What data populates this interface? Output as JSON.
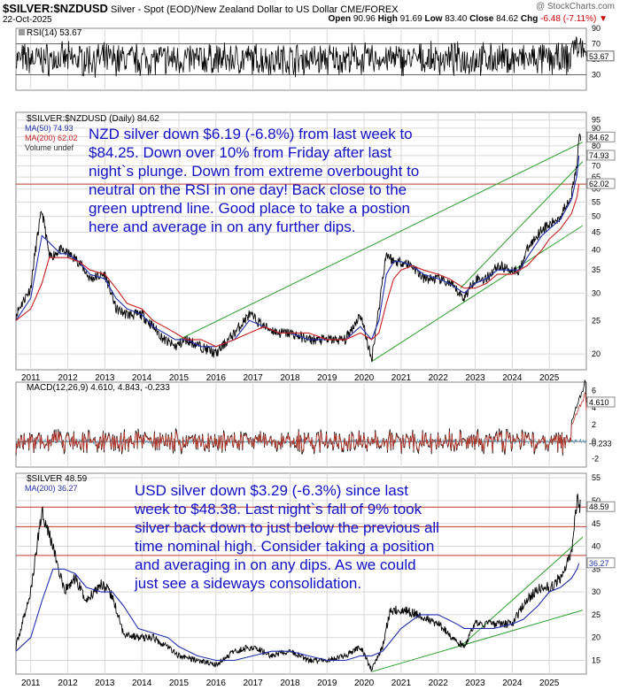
{
  "header": {
    "symbol": "$SILVER:$NZDUSD",
    "description": "Silver - Spot (EOD)/New Zealand Dollar to US Dollar CME/FOREX",
    "date": "22-Oct-2025",
    "watermark": "@ StockCharts.com",
    "ohlc": {
      "open_label": "Open",
      "open": "90.96",
      "high_label": "High",
      "high": "91.69",
      "low_label": "Low",
      "low": "83.40",
      "close_label": "Close",
      "close": "84.62",
      "chg_label": "Chg",
      "chg": "-6.48 (-7.11%)"
    }
  },
  "annotations": {
    "nzd_lines": [
      "NZD silver down $6.19 (-6.8%) from last week to",
      "$84.25. Down over 10% from Friday after last",
      "night`s plunge. Down from extreme overbought to",
      "neutral on the RSI in one day! Back close to the",
      "green uptrend line. Good place to take a postion",
      "here and average in on any further dips."
    ],
    "usd_lines": [
      "USD silver down $3.29 (-6.3%) since last",
      "week to $48.38. Last night`s fall of 9% took",
      "silver back down to just below the previous all",
      "time nominal high. Consider taking a position",
      "and averaging in on any dips. As we could",
      "just see a sideways consolidation."
    ]
  },
  "colors": {
    "price": "#000000",
    "ma50": "#1f2fb0",
    "ma200": "#cc1f1f",
    "trend": "#2aa12a",
    "grid": "#d8d8d8",
    "annotation": "#1010c8",
    "macd_hist": "#4f8fb0"
  },
  "chart_data": [
    {
      "type": "line",
      "panel": "rsi",
      "title": "RSI(14) 53.67",
      "ylim": [
        10,
        90
      ],
      "yticks": [
        30,
        50,
        70,
        90
      ],
      "levels": [
        30,
        70
      ],
      "last_label": "53.67",
      "series": [
        {
          "name": "RSI(14)",
          "last": 53.67
        }
      ]
    },
    {
      "type": "line",
      "panel": "nzd_price",
      "legend": [
        "$SILVER:$NZDUSD (Daily) 84.62",
        "MA(50) 74.93",
        "MA(200) 62.02",
        "Volume undef"
      ],
      "scale": "log",
      "ylim": [
        18,
        100
      ],
      "yticks": [
        20,
        25,
        30,
        35,
        40,
        45,
        50,
        55,
        60,
        65,
        70,
        75,
        80,
        85,
        90,
        95
      ],
      "x": [
        2010.6,
        2011.0,
        2011.3,
        2011.5,
        2011.8,
        2012.0,
        2012.3,
        2012.6,
        2013.0,
        2013.3,
        2013.6,
        2014.0,
        2014.3,
        2014.6,
        2014.9,
        2015.2,
        2015.6,
        2016.0,
        2016.5,
        2016.9,
        2017.3,
        2017.7,
        2018.0,
        2018.5,
        2019.0,
        2019.5,
        2019.9,
        2020.2,
        2020.4,
        2020.6,
        2020.8,
        2021.0,
        2021.3,
        2021.6,
        2022.0,
        2022.3,
        2022.7,
        2023.0,
        2023.3,
        2023.6,
        2024.0,
        2024.2,
        2024.4,
        2024.8,
        2025.0,
        2025.3,
        2025.6,
        2025.75,
        2025.8
      ],
      "series": [
        {
          "name": "$SILVER:$NZDUSD",
          "values": [
            26,
            31,
            52,
            38,
            40,
            39,
            37,
            33,
            34,
            27,
            26,
            26,
            24,
            22,
            21,
            22,
            21,
            20,
            23,
            26,
            24,
            23,
            23,
            22,
            22,
            22,
            26,
            19,
            27,
            39,
            37,
            37,
            36,
            33,
            33,
            32,
            29,
            33,
            33,
            36,
            35,
            35,
            40,
            46,
            47,
            50,
            58,
            70,
            84.62
          ]
        },
        {
          "name": "MA(50)",
          "values": [
            25,
            29,
            44,
            42,
            39,
            39,
            37,
            34,
            33,
            29,
            27,
            26,
            24,
            23,
            22,
            22,
            21,
            21,
            22,
            25,
            24,
            23,
            23,
            22,
            22,
            22,
            24,
            22,
            25,
            34,
            37,
            37,
            36,
            34,
            33,
            32,
            30,
            32,
            33,
            35,
            35,
            35,
            38,
            44,
            46,
            49,
            56,
            66,
            74.93
          ]
        },
        {
          "name": "MA(200)",
          "values": [
            25,
            27,
            32,
            38,
            38,
            38,
            37,
            35,
            34,
            31,
            28,
            27,
            25,
            24,
            23,
            22,
            22,
            21,
            22,
            23,
            24,
            23,
            23,
            23,
            22,
            22,
            23,
            22,
            23,
            28,
            33,
            35,
            36,
            35,
            34,
            33,
            31,
            31,
            32,
            34,
            34,
            35,
            36,
            40,
            43,
            46,
            51,
            57,
            62.02
          ]
        }
      ],
      "trendlines": [
        {
          "x": [
            2015.0,
            2025.9
          ],
          "y": [
            22,
            82
          ]
        },
        {
          "x": [
            2020.2,
            2025.9
          ],
          "y": [
            19,
            47
          ]
        },
        {
          "x": [
            2022.6,
            2025.9
          ],
          "y": [
            31,
            72
          ]
        }
      ],
      "hline": 62.02,
      "tick_labels": [
        "84.62",
        "74.93",
        "62.02"
      ]
    },
    {
      "type": "bar",
      "panel": "macd",
      "title": "MACD(12,26,9) 4.610, 4.843, -0.233",
      "series": [
        {
          "name": "MACD",
          "last": 4.61
        },
        {
          "name": "Signal",
          "last": 4.843
        },
        {
          "name": "Histogram",
          "last": -0.233
        }
      ],
      "ylim": [
        -3,
        7
      ],
      "yticks": [
        -2,
        0,
        2,
        4,
        6
      ],
      "tick_labels": [
        "4.610",
        "-0.233"
      ]
    },
    {
      "type": "line",
      "panel": "usd_price",
      "legend": [
        "$SILVER 48.59",
        "MA(200) 36.27"
      ],
      "ylim": [
        12,
        56
      ],
      "yticks": [
        15,
        20,
        25,
        30,
        35,
        40,
        45,
        50,
        55
      ],
      "x": [
        2010.6,
        2011.0,
        2011.3,
        2011.6,
        2011.9,
        2012.2,
        2012.5,
        2012.9,
        2013.2,
        2013.5,
        2013.9,
        2014.3,
        2014.7,
        2015.0,
        2015.5,
        2016.0,
        2016.5,
        2017.0,
        2017.5,
        2018.0,
        2018.5,
        2019.0,
        2019.5,
        2019.9,
        2020.2,
        2020.5,
        2020.7,
        2021.0,
        2021.5,
        2022.0,
        2022.5,
        2022.7,
        2023.0,
        2023.5,
        2024.0,
        2024.3,
        2024.7,
        2025.0,
        2025.3,
        2025.6,
        2025.75,
        2025.8
      ],
      "series": [
        {
          "name": "$SILVER",
          "values": [
            18,
            30,
            48,
            40,
            30,
            33,
            28,
            32,
            29,
            21,
            20,
            20,
            18,
            16,
            15,
            14,
            17,
            18,
            16,
            17,
            15,
            15,
            16,
            18,
            13,
            18,
            26,
            26,
            25,
            23,
            19,
            18,
            23,
            23,
            23,
            27,
            31,
            31,
            33,
            38,
            50,
            48.59
          ]
        },
        {
          "name": "MA(200)",
          "values": [
            17,
            20,
            28,
            35,
            35,
            34,
            31,
            30,
            30,
            27,
            22,
            21,
            20,
            18,
            16,
            15,
            15,
            16,
            17,
            17,
            16,
            15,
            15,
            16,
            16,
            17,
            19,
            22,
            25,
            25,
            23,
            22,
            22,
            22,
            23,
            24,
            27,
            30,
            31,
            33,
            35,
            36.27
          ]
        }
      ],
      "trendlines": [
        {
          "x": [
            2020.2,
            2025.9
          ],
          "y": [
            12.5,
            26
          ]
        },
        {
          "x": [
            2022.6,
            2025.9
          ],
          "y": [
            18,
            42
          ]
        }
      ],
      "hlines": [
        48.59,
        44.3,
        38.0
      ],
      "xticks": [
        "2011",
        "2012",
        "2013",
        "2014",
        "2015",
        "2016",
        "2017",
        "2018",
        "2019",
        "2020",
        "2021",
        "2022",
        "2023",
        "2024",
        "2025"
      ],
      "tick_labels": [
        "48.59",
        "36.27"
      ]
    }
  ]
}
